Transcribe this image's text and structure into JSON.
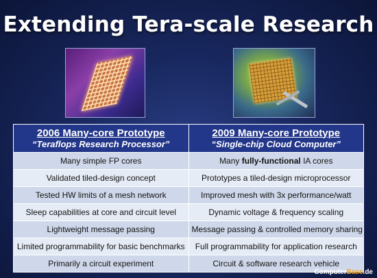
{
  "title": "Extending Tera-scale Research",
  "table": {
    "headers": [
      {
        "name": "2006 Many-core Prototype",
        "sub": "“Teraflops Research Processor”"
      },
      {
        "name": "2009 Many-core Prototype",
        "sub": "“Single-chip Cloud Computer”"
      }
    ],
    "rows": [
      {
        "left": "Many simple FP cores",
        "right_pre": "Many ",
        "right_bold": "fully-functional",
        "right_post": " IA cores"
      },
      {
        "left": "Validated tiled-design concept",
        "right_pre": "Prototypes a tiled-design microprocessor",
        "right_bold": "",
        "right_post": ""
      },
      {
        "left": "Tested HW limits of a mesh network",
        "right_pre": "Improved mesh with 3x performance/watt",
        "right_bold": "",
        "right_post": ""
      },
      {
        "left": "Sleep capabilities at core and circuit level",
        "right_pre": "Dynamic voltage & frequency scaling",
        "right_bold": "",
        "right_post": ""
      },
      {
        "left": "Lightweight message passing",
        "right_pre": "Message passing & controlled memory sharing",
        "right_bold": "",
        "right_post": ""
      },
      {
        "left": "Limited programmability for basic benchmarks",
        "right_pre": "Full programmability for application research",
        "right_bold": "",
        "right_post": ""
      },
      {
        "left": "Primarily a circuit experiment",
        "right_pre": "Circuit & software research vehicle",
        "right_bold": "",
        "right_post": ""
      }
    ]
  },
  "watermark": {
    "part1": "Computer",
    "part2": "Base",
    "part3": ".de"
  },
  "colors": {
    "header_bg": "#22368a",
    "row_odd": "#cfd8ea",
    "row_even": "#e6ecf6"
  }
}
